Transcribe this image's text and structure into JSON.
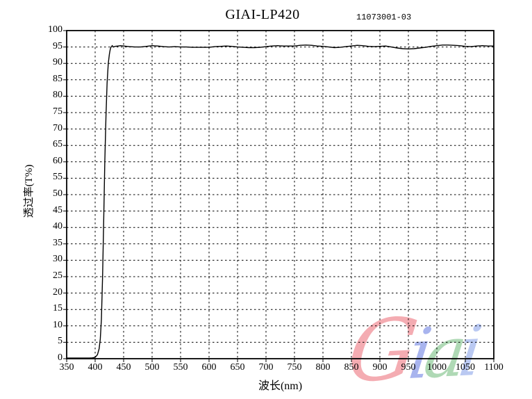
{
  "title": "GIAI-LP420",
  "serial": "11073001-03",
  "watermark": {
    "letters": [
      {
        "ch": "G",
        "color": "#f4acb2"
      },
      {
        "ch": "i",
        "color": "#a8b4ee"
      },
      {
        "ch": "a",
        "color": "#afd9b5"
      },
      {
        "ch": "i",
        "color": "#bac9f2"
      }
    ]
  },
  "chart_data": {
    "type": "line",
    "title": "GIAI-LP420",
    "xlabel": "波长(nm)",
    "ylabel": "透过率(T%)",
    "xlim": [
      350,
      1100
    ],
    "ylim": [
      0,
      100
    ],
    "x_ticks": [
      350,
      400,
      450,
      500,
      550,
      600,
      650,
      700,
      750,
      800,
      850,
      900,
      950,
      1000,
      1050,
      1100
    ],
    "y_ticks": [
      0,
      5,
      10,
      15,
      20,
      25,
      30,
      35,
      40,
      45,
      50,
      55,
      60,
      65,
      70,
      75,
      80,
      85,
      90,
      95,
      100
    ],
    "grid": "dashed",
    "legend": "none",
    "line_color": "#000000",
    "series": [
      {
        "name": "transmission",
        "points": [
          [
            350,
            0.2
          ],
          [
            360,
            0.2
          ],
          [
            370,
            0.2
          ],
          [
            380,
            0.2
          ],
          [
            390,
            0.2
          ],
          [
            395,
            0.25
          ],
          [
            400,
            0.4
          ],
          [
            404,
            1.2
          ],
          [
            407,
            3
          ],
          [
            409,
            6
          ],
          [
            411,
            12
          ],
          [
            413,
            25
          ],
          [
            415,
            42
          ],
          [
            417,
            60
          ],
          [
            419,
            74
          ],
          [
            421,
            84
          ],
          [
            423,
            90
          ],
          [
            425,
            92.8
          ],
          [
            426,
            93.8
          ],
          [
            427,
            94.6
          ],
          [
            428,
            95.0
          ],
          [
            430,
            95.4
          ],
          [
            432,
            95.0
          ],
          [
            435,
            95.2
          ],
          [
            440,
            95.3
          ],
          [
            445,
            95.4
          ],
          [
            450,
            95.3
          ],
          [
            460,
            95.1
          ],
          [
            470,
            95.0
          ],
          [
            480,
            95.0
          ],
          [
            490,
            95.2
          ],
          [
            500,
            95.4
          ],
          [
            510,
            95.3
          ],
          [
            520,
            95.1
          ],
          [
            530,
            95.0
          ],
          [
            540,
            95.1
          ],
          [
            550,
            95.0
          ],
          [
            560,
            95.0
          ],
          [
            570,
            94.9
          ],
          [
            580,
            94.9
          ],
          [
            590,
            94.9
          ],
          [
            600,
            94.9
          ],
          [
            610,
            95.1
          ],
          [
            620,
            95.2
          ],
          [
            630,
            95.3
          ],
          [
            640,
            95.2
          ],
          [
            650,
            95.0
          ],
          [
            660,
            94.9
          ],
          [
            670,
            94.8
          ],
          [
            680,
            94.8
          ],
          [
            690,
            94.9
          ],
          [
            700,
            95.1
          ],
          [
            710,
            95.3
          ],
          [
            720,
            95.4
          ],
          [
            730,
            95.3
          ],
          [
            740,
            95.3
          ],
          [
            750,
            95.3
          ],
          [
            760,
            95.5
          ],
          [
            770,
            95.6
          ],
          [
            780,
            95.5
          ],
          [
            790,
            95.3
          ],
          [
            800,
            95.2
          ],
          [
            810,
            95.0
          ],
          [
            820,
            94.8
          ],
          [
            830,
            94.9
          ],
          [
            840,
            95.1
          ],
          [
            850,
            95.3
          ],
          [
            860,
            95.5
          ],
          [
            870,
            95.4
          ],
          [
            880,
            95.2
          ],
          [
            890,
            95.1
          ],
          [
            900,
            95.2
          ],
          [
            910,
            95.3
          ],
          [
            920,
            95.0
          ],
          [
            930,
            94.7
          ],
          [
            940,
            94.5
          ],
          [
            950,
            94.4
          ],
          [
            960,
            94.5
          ],
          [
            970,
            94.7
          ],
          [
            980,
            94.9
          ],
          [
            990,
            95.2
          ],
          [
            1000,
            95.4
          ],
          [
            1010,
            95.6
          ],
          [
            1020,
            95.6
          ],
          [
            1030,
            95.5
          ],
          [
            1040,
            95.4
          ],
          [
            1050,
            95.2
          ],
          [
            1060,
            95.1
          ],
          [
            1070,
            95.3
          ],
          [
            1080,
            95.4
          ],
          [
            1090,
            95.3
          ],
          [
            1100,
            95.3
          ]
        ]
      }
    ]
  }
}
